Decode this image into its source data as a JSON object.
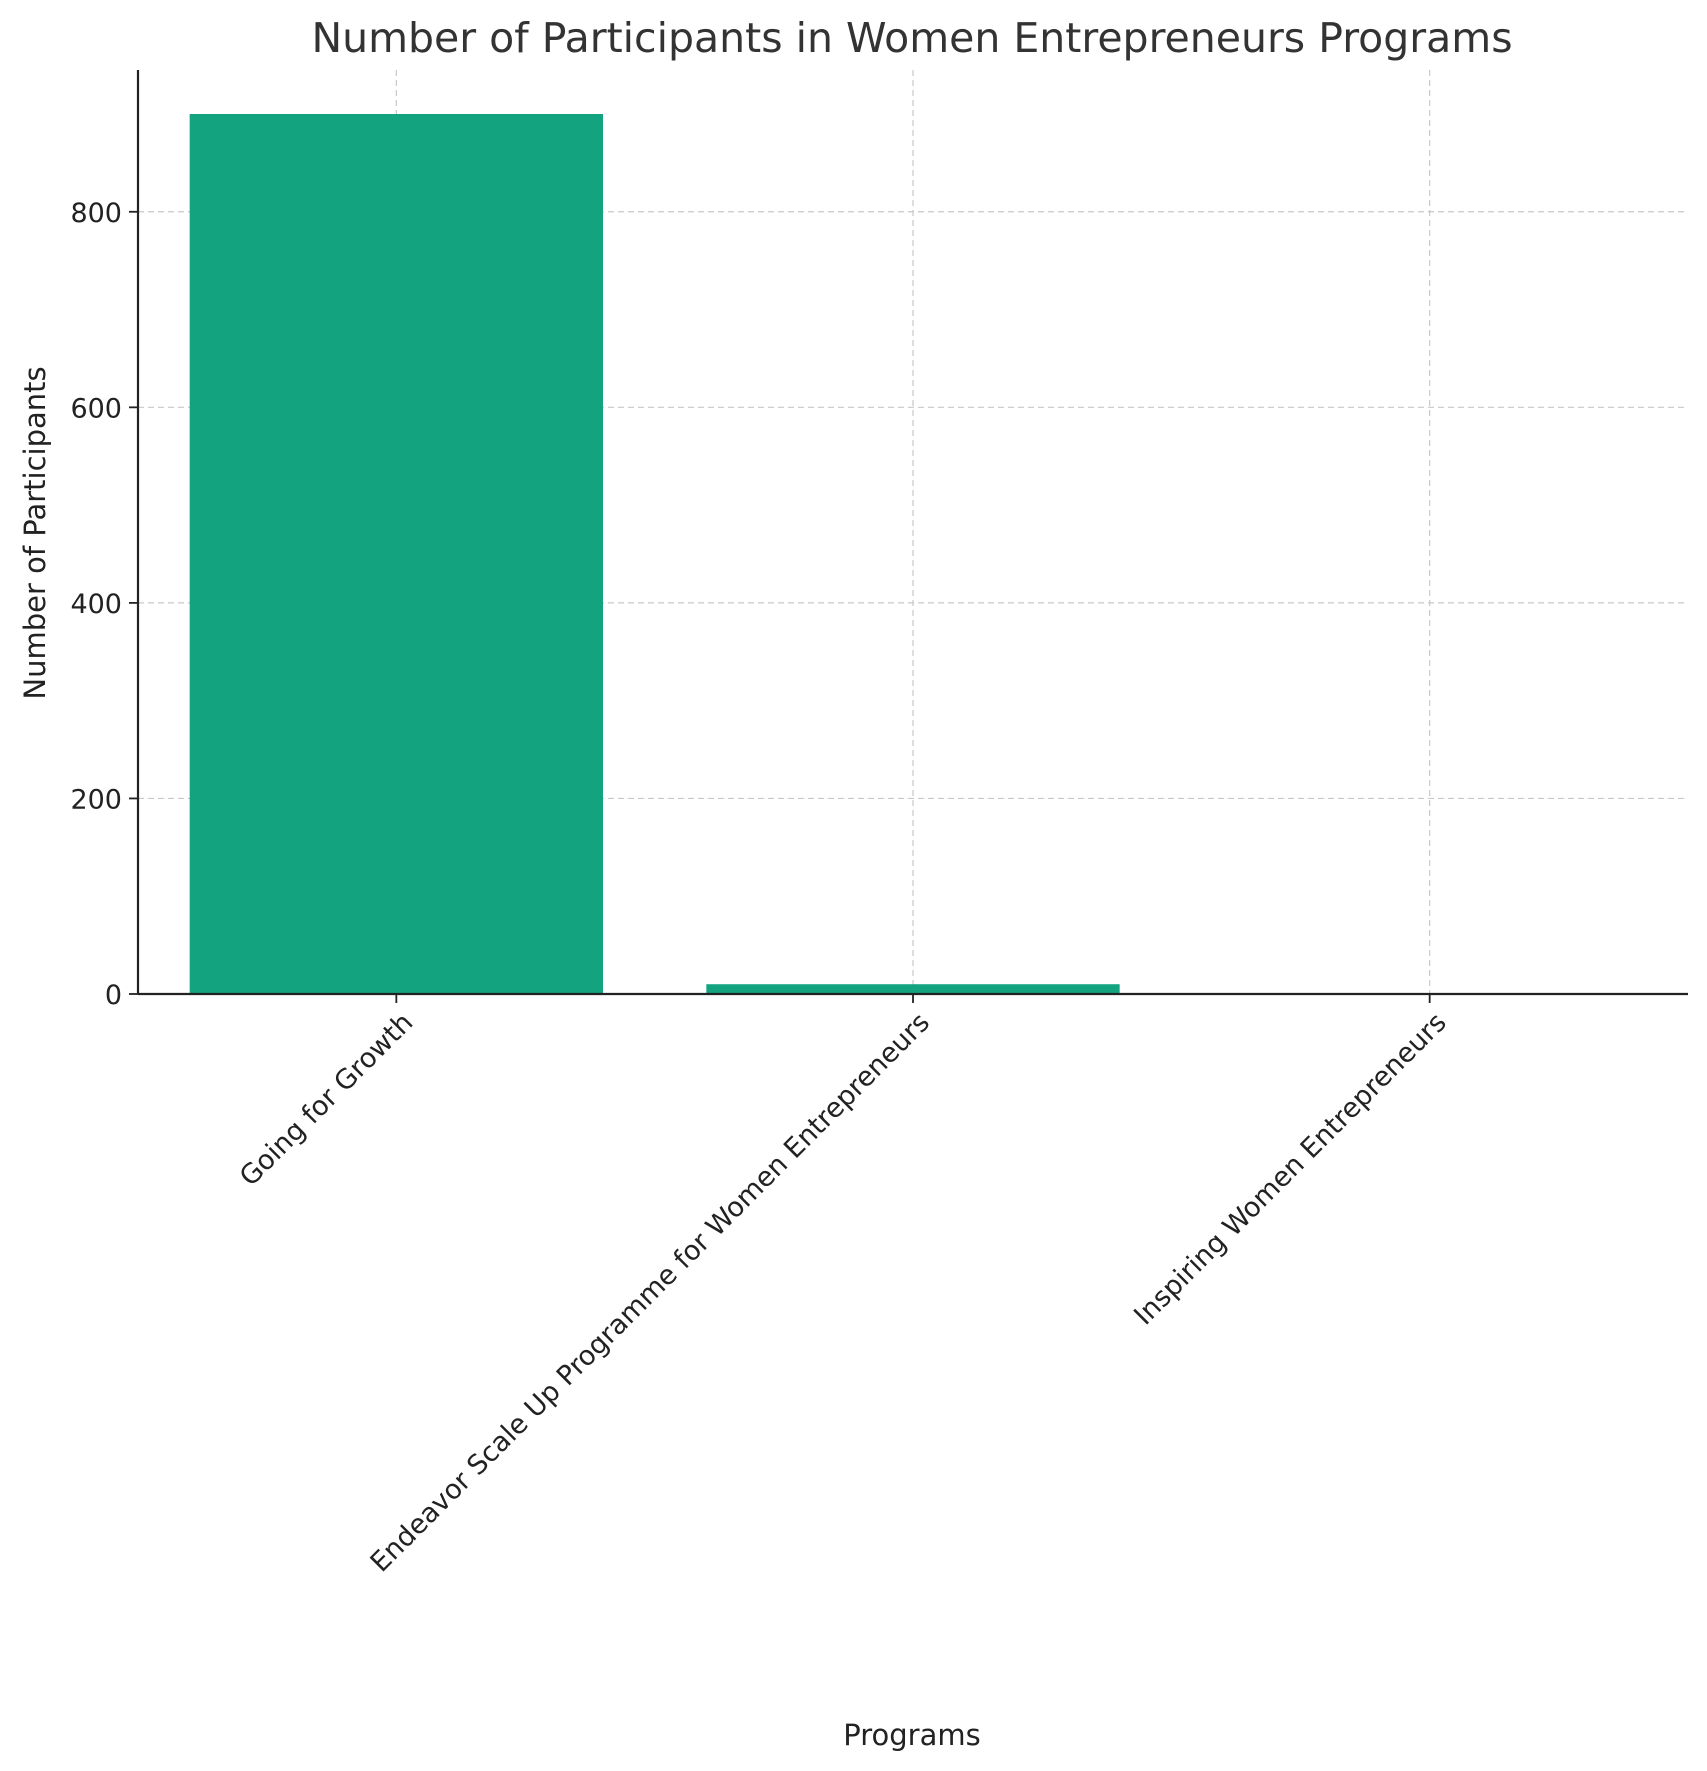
{
  "chart_data": {
    "type": "bar",
    "title": "Number of Participants in Women Entrepreneurs Programs",
    "xlabel": "Programs",
    "ylabel": "Number of Participants",
    "categories": [
      "Going for Growth",
      "Endeavor Scale Up Programme for Women Entrepreneurs",
      "Inspiring Women Entrepreneurs"
    ],
    "values": [
      900,
      10,
      0
    ],
    "ylim": [
      0,
      945
    ],
    "yticks": [
      0,
      200,
      400,
      600,
      800
    ],
    "ytick_labels": [
      "0",
      "200",
      "400",
      "600",
      "800"
    ],
    "grid": true,
    "bar_color": "#13a37f",
    "xtick_rotation_deg": 45
  }
}
